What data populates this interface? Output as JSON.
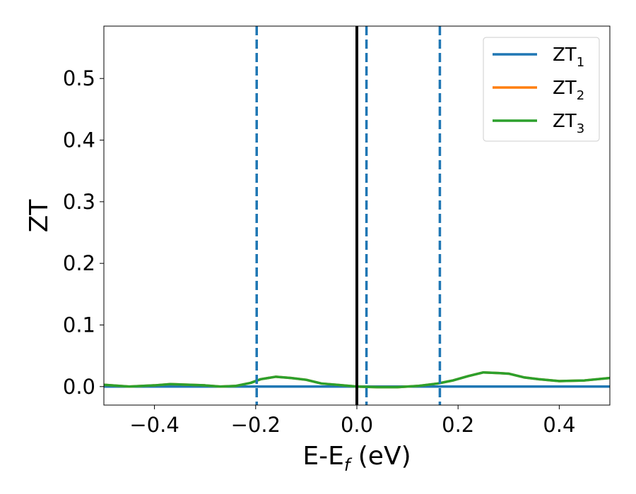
{
  "chart_data": {
    "type": "line",
    "xlabel": "E-E",
    "xlabel_sub": "f",
    "xlabel_unit": " (eV)",
    "ylabel": "ZT",
    "xlim": [
      -0.5,
      0.5
    ],
    "ylim": [
      -0.03,
      0.585
    ],
    "x_ticks": [
      -0.4,
      -0.2,
      0.0,
      0.2,
      0.4
    ],
    "x_tick_labels": [
      "−0.4",
      "−0.2",
      "0.0",
      "0.2",
      "0.4"
    ],
    "y_ticks": [
      0.0,
      0.1,
      0.2,
      0.3,
      0.4,
      0.5
    ],
    "y_tick_labels": [
      "0.0",
      "0.1",
      "0.2",
      "0.3",
      "0.4",
      "0.5"
    ],
    "grid": false,
    "legend_position": "top-right",
    "vertical_lines": [
      {
        "x": 0.0,
        "color": "#000000",
        "style": "solid"
      },
      {
        "x": -0.198,
        "color": "#1f77b4",
        "style": "dashed"
      },
      {
        "x": 0.019,
        "color": "#1f77b4",
        "style": "dashed"
      },
      {
        "x": 0.164,
        "color": "#1f77b4",
        "style": "dashed"
      }
    ],
    "series": [
      {
        "name": "ZT",
        "name_sub": "1",
        "color": "#1f77b4",
        "x": [
          -0.5,
          0.5
        ],
        "y": [
          0.0,
          0.0
        ]
      },
      {
        "name": "ZT",
        "name_sub": "2",
        "color": "#ff7f0e",
        "x": [
          -0.5,
          -0.45,
          -0.4,
          -0.37,
          -0.33,
          -0.3,
          -0.27,
          -0.24,
          -0.21,
          -0.19,
          -0.16,
          -0.13,
          -0.1,
          -0.07,
          -0.04,
          0.0,
          0.04,
          0.08,
          0.12,
          0.16,
          0.19,
          0.22,
          0.25,
          0.28,
          0.3,
          0.33,
          0.36,
          0.4,
          0.45,
          0.5
        ],
        "y": [
          0.003,
          0.0,
          0.002,
          0.004,
          0.003,
          0.002,
          0.0,
          0.001,
          0.006,
          0.012,
          0.016,
          0.014,
          0.011,
          0.005,
          0.003,
          0.0,
          -0.001,
          -0.001,
          0.001,
          0.005,
          0.01,
          0.017,
          0.023,
          0.022,
          0.021,
          0.015,
          0.012,
          0.009,
          0.01,
          0.014
        ]
      },
      {
        "name": "ZT",
        "name_sub": "3",
        "color": "#2ca02c",
        "x": [
          -0.5,
          -0.45,
          -0.4,
          -0.37,
          -0.33,
          -0.3,
          -0.27,
          -0.24,
          -0.21,
          -0.19,
          -0.16,
          -0.13,
          -0.1,
          -0.07,
          -0.04,
          0.0,
          0.04,
          0.08,
          0.12,
          0.16,
          0.19,
          0.22,
          0.25,
          0.28,
          0.3,
          0.33,
          0.36,
          0.4,
          0.45,
          0.5
        ],
        "y": [
          0.003,
          0.0,
          0.002,
          0.004,
          0.003,
          0.002,
          0.0,
          0.001,
          0.006,
          0.012,
          0.016,
          0.014,
          0.011,
          0.005,
          0.003,
          0.0,
          -0.001,
          -0.001,
          0.001,
          0.005,
          0.01,
          0.017,
          0.023,
          0.022,
          0.021,
          0.015,
          0.012,
          0.009,
          0.01,
          0.014
        ]
      }
    ]
  }
}
